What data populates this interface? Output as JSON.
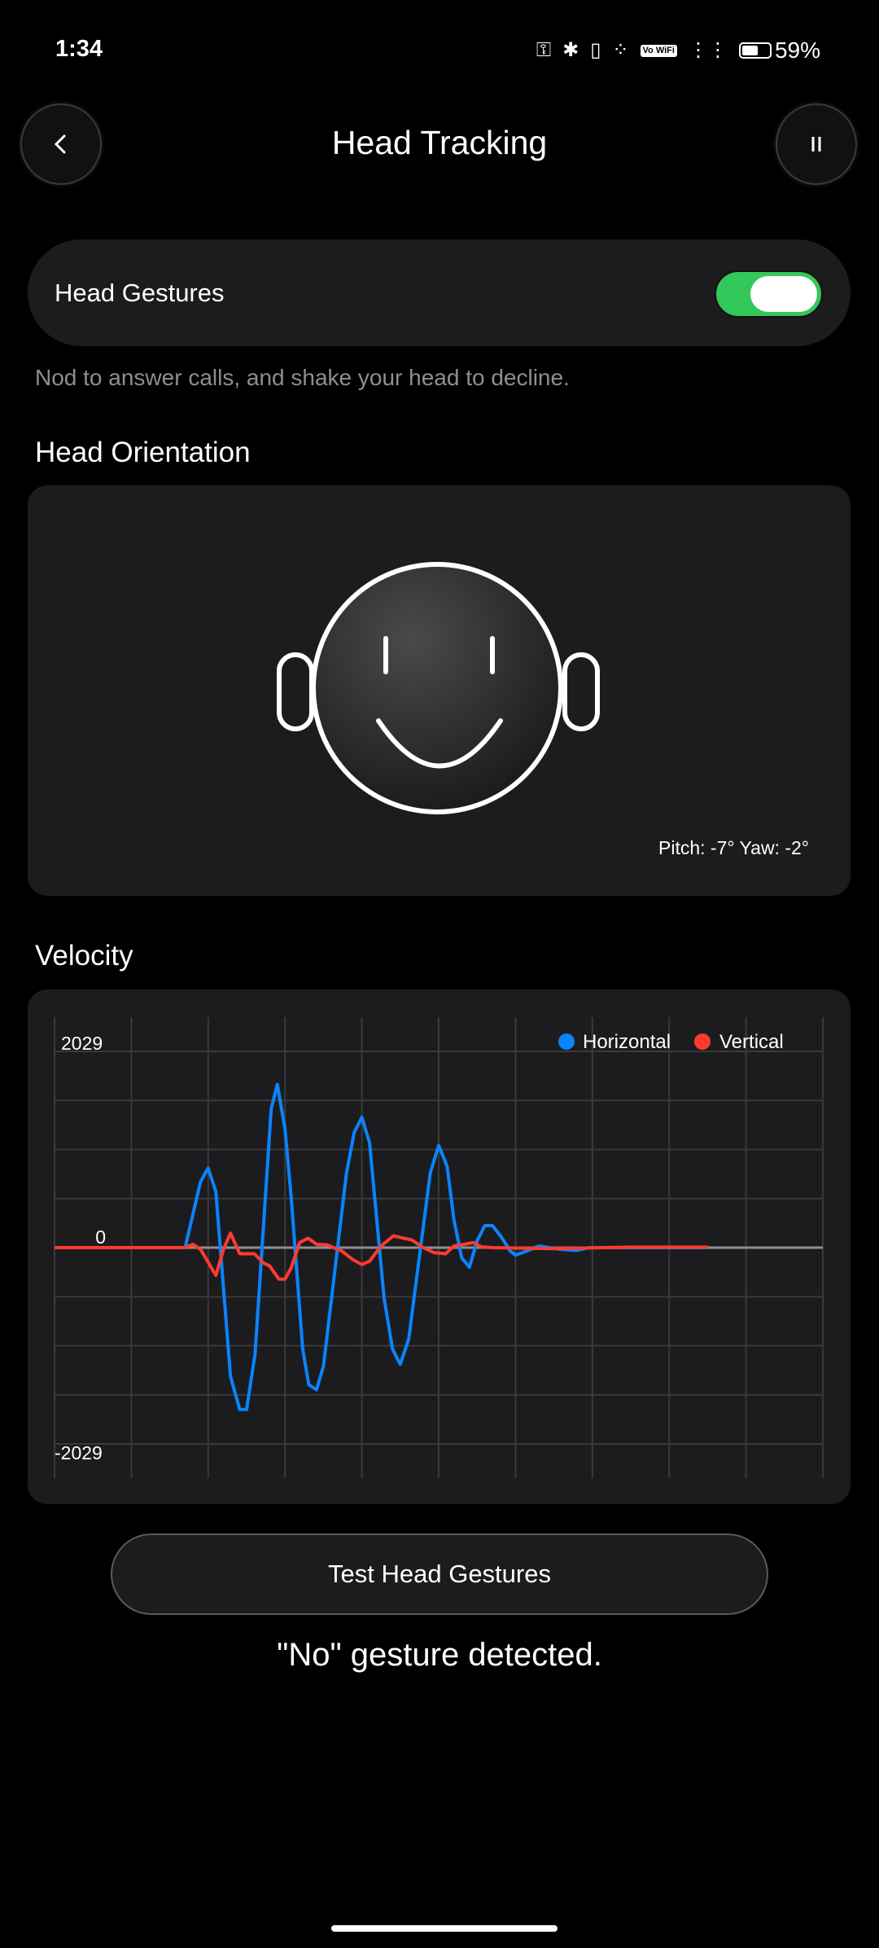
{
  "status_bar": {
    "time": "1:34",
    "battery": "59%",
    "battery_level": 0.59,
    "vowifi": "Vo WiFi",
    "icons": [
      "key-icon",
      "bluetooth-icon",
      "vibrate-icon",
      "wifi-icon",
      "vowifi-icon",
      "signal-icon",
      "battery-icon"
    ]
  },
  "header": {
    "title": "Head Tracking",
    "back_icon": "chevron-left-icon",
    "pause_icon": "pause-icon"
  },
  "gestures": {
    "label": "Head Gestures",
    "enabled": true,
    "description": "Nod to answer calls, and shake your head to decline.",
    "accent": "#34c759"
  },
  "orientation": {
    "title": "Head Orientation",
    "readout": "Pitch: -7° Yaw: -2°"
  },
  "velocity": {
    "title": "Velocity"
  },
  "chart_data": {
    "type": "line",
    "xlim": [
      0,
      100
    ],
    "ylim": [
      -2029,
      2029
    ],
    "yticks": [
      "2029",
      "0",
      "-2029"
    ],
    "grid": true,
    "legend": "top-right",
    "series": [
      {
        "name": "Horizontal",
        "color": "#0a84ff",
        "x": [
          0,
          5,
          10,
          15,
          17,
          19,
          20,
          21,
          22.9,
          24.1,
          25,
          26.1,
          28.2,
          29,
          30,
          30.8,
          32.3,
          33.1,
          34.1,
          35,
          38,
          39,
          40,
          41,
          42.9,
          44,
          45,
          46.1,
          48.9,
          50,
          51.1,
          52,
          53,
          54,
          55,
          56,
          57,
          58.2,
          59.3,
          60,
          61.5,
          63,
          65.8,
          68,
          69.5,
          73,
          80,
          85
        ],
        "y": [
          0,
          0,
          0,
          0,
          0,
          682,
          822,
          577,
          -1330,
          -1673,
          -1673,
          -1100,
          1435,
          1687,
          1225,
          525,
          -1050,
          -1417,
          -1470,
          -1225,
          770,
          1190,
          1347,
          1085,
          -525,
          -1050,
          -1207,
          -945,
          770,
          1057,
          840,
          280,
          -105,
          -203,
          70,
          227,
          227,
          105,
          -35,
          -77,
          -35,
          17,
          -17,
          -28,
          0,
          0,
          0,
          0
        ]
      },
      {
        "name": "Vertical",
        "color": "#ff3b30",
        "x": [
          0,
          5,
          10,
          17,
          18,
          19,
          21,
          22,
          22.9,
          24.1,
          26,
          27.2,
          28,
          29.2,
          30,
          30.8,
          31.9,
          33,
          34.1,
          35.5,
          37.4,
          38.8,
          40,
          41,
          42.5,
          44.1,
          45.4,
          46.5,
          48,
          49.4,
          50.9,
          52,
          53.4,
          54.5,
          55.6,
          57,
          65,
          75,
          85
        ],
        "y": [
          0,
          0,
          0,
          0,
          35,
          -17,
          -287,
          -17,
          150,
          -63,
          -63,
          -158,
          -190,
          -325,
          -325,
          -210,
          52,
          98,
          35,
          28,
          -35,
          -122,
          -175,
          -140,
          17,
          122,
          98,
          80,
          0,
          -52,
          -63,
          17,
          35,
          52,
          7,
          0,
          -10,
          5,
          5
        ]
      }
    ]
  },
  "test_button": "Test Head Gestures",
  "result": "\"No\" gesture detected."
}
